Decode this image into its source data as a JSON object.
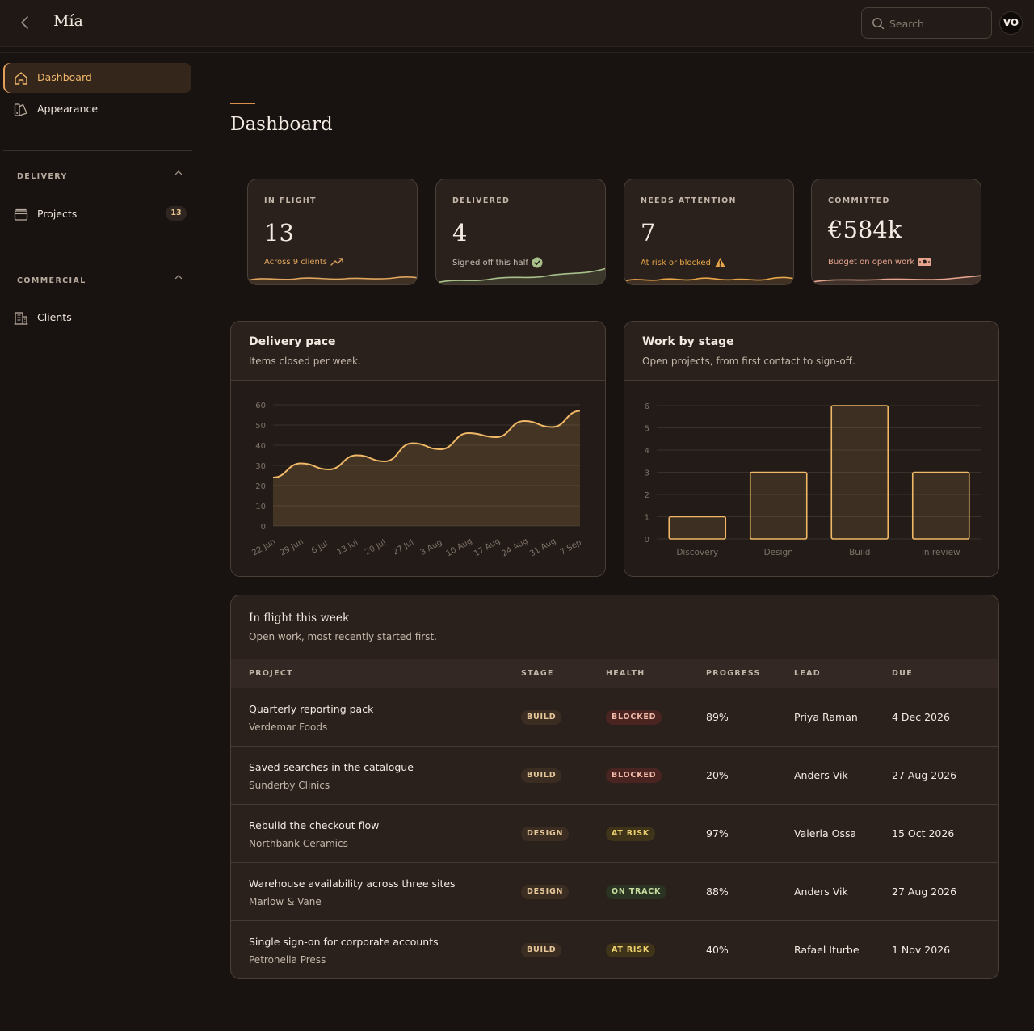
{
  "app": {
    "brand": "Mía",
    "search_placeholder": "Search",
    "avatar_initials": "VO"
  },
  "sidebar": {
    "items": [
      {
        "label": "Dashboard",
        "icon": "home-icon",
        "active": true
      },
      {
        "label": "Appearance",
        "icon": "palette-icon"
      }
    ],
    "sections": [
      {
        "title": "DELIVERY",
        "items": [
          {
            "label": "Projects",
            "icon": "folder-icon",
            "badge": "13"
          }
        ]
      },
      {
        "title": "COMMERCIAL",
        "items": [
          {
            "label": "Clients",
            "icon": "building-icon"
          }
        ]
      }
    ]
  },
  "page": {
    "title": "Dashboard"
  },
  "stats": [
    {
      "label": "IN FLIGHT",
      "value": "13",
      "note": "Across 9 clients",
      "note_icon": "trending-up-icon",
      "color": "#e0a55e"
    },
    {
      "label": "DELIVERED",
      "value": "4",
      "note": "Signed off this half",
      "note_icon": "check-circle-icon",
      "color": "#a8c08a"
    },
    {
      "label": "NEEDS ATTENTION",
      "value": "7",
      "note": "At risk or blocked",
      "note_icon": "warning-icon",
      "color": "#e8a64a"
    },
    {
      "label": "COMMITTED",
      "value": "€584k",
      "note": "Budget on open work",
      "note_icon": "banknote-icon",
      "color": "#e7a58f"
    }
  ],
  "pace_panel": {
    "title": "Delivery pace",
    "subtitle": "Items closed per week."
  },
  "stage_panel": {
    "title": "Work by stage",
    "subtitle": "Open projects, from first contact to sign-off."
  },
  "chart_data": [
    {
      "type": "area",
      "title": "Delivery pace",
      "x": [
        "22 Jun",
        "29 Jun",
        "6 Jul",
        "13 Jul",
        "20 Jul",
        "27 Jul",
        "3 Aug",
        "10 Aug",
        "17 Aug",
        "24 Aug",
        "31 Aug",
        "7 Sep"
      ],
      "series": [
        {
          "values": [
            24,
            31,
            28,
            35,
            32,
            41,
            38,
            46,
            44,
            52,
            49,
            57
          ]
        }
      ],
      "ylim": [
        0,
        60
      ],
      "yticks": [
        0,
        10,
        20,
        30,
        40,
        50,
        60
      ],
      "grid": true,
      "color": "#f0b867"
    },
    {
      "type": "bar",
      "title": "Work by stage",
      "categories": [
        "Discovery",
        "Design",
        "Build",
        "In review"
      ],
      "values": [
        1,
        3,
        6,
        3
      ],
      "ylim": [
        0,
        6
      ],
      "yticks": [
        0,
        1,
        2,
        3,
        4,
        5,
        6
      ],
      "grid": true,
      "color": "#f0b867"
    }
  ],
  "table": {
    "title": "In flight this week",
    "subtitle": "Open work, most recently started first.",
    "columns": [
      "PROJECT",
      "STAGE",
      "HEALTH",
      "PROGRESS",
      "LEAD",
      "DUE"
    ],
    "rows": [
      {
        "project": "Quarterly reporting pack",
        "client": "Verdemar Foods",
        "stage": "BUILD",
        "health": "BLOCKED",
        "progress": "89%",
        "lead": "Priya Raman",
        "due": "4 Dec 2026"
      },
      {
        "project": "Saved searches in the catalogue",
        "client": "Sunderby Clinics",
        "stage": "BUILD",
        "health": "BLOCKED",
        "progress": "20%",
        "lead": "Anders Vik",
        "due": "27 Aug 2026"
      },
      {
        "project": "Rebuild the checkout flow",
        "client": "Northbank Ceramics",
        "stage": "DESIGN",
        "health": "AT RISK",
        "progress": "97%",
        "lead": "Valeria Ossa",
        "due": "15 Oct 2026"
      },
      {
        "project": "Warehouse availability across three sites",
        "client": "Marlow & Vane",
        "stage": "DESIGN",
        "health": "ON TRACK",
        "progress": "88%",
        "lead": "Anders Vik",
        "due": "27 Aug 2026"
      },
      {
        "project": "Single sign-on for corporate accounts",
        "client": "Petronella Press",
        "stage": "BUILD",
        "health": "AT RISK",
        "progress": "40%",
        "lead": "Rafael Iturbe",
        "due": "1 Nov 2026"
      }
    ]
  }
}
